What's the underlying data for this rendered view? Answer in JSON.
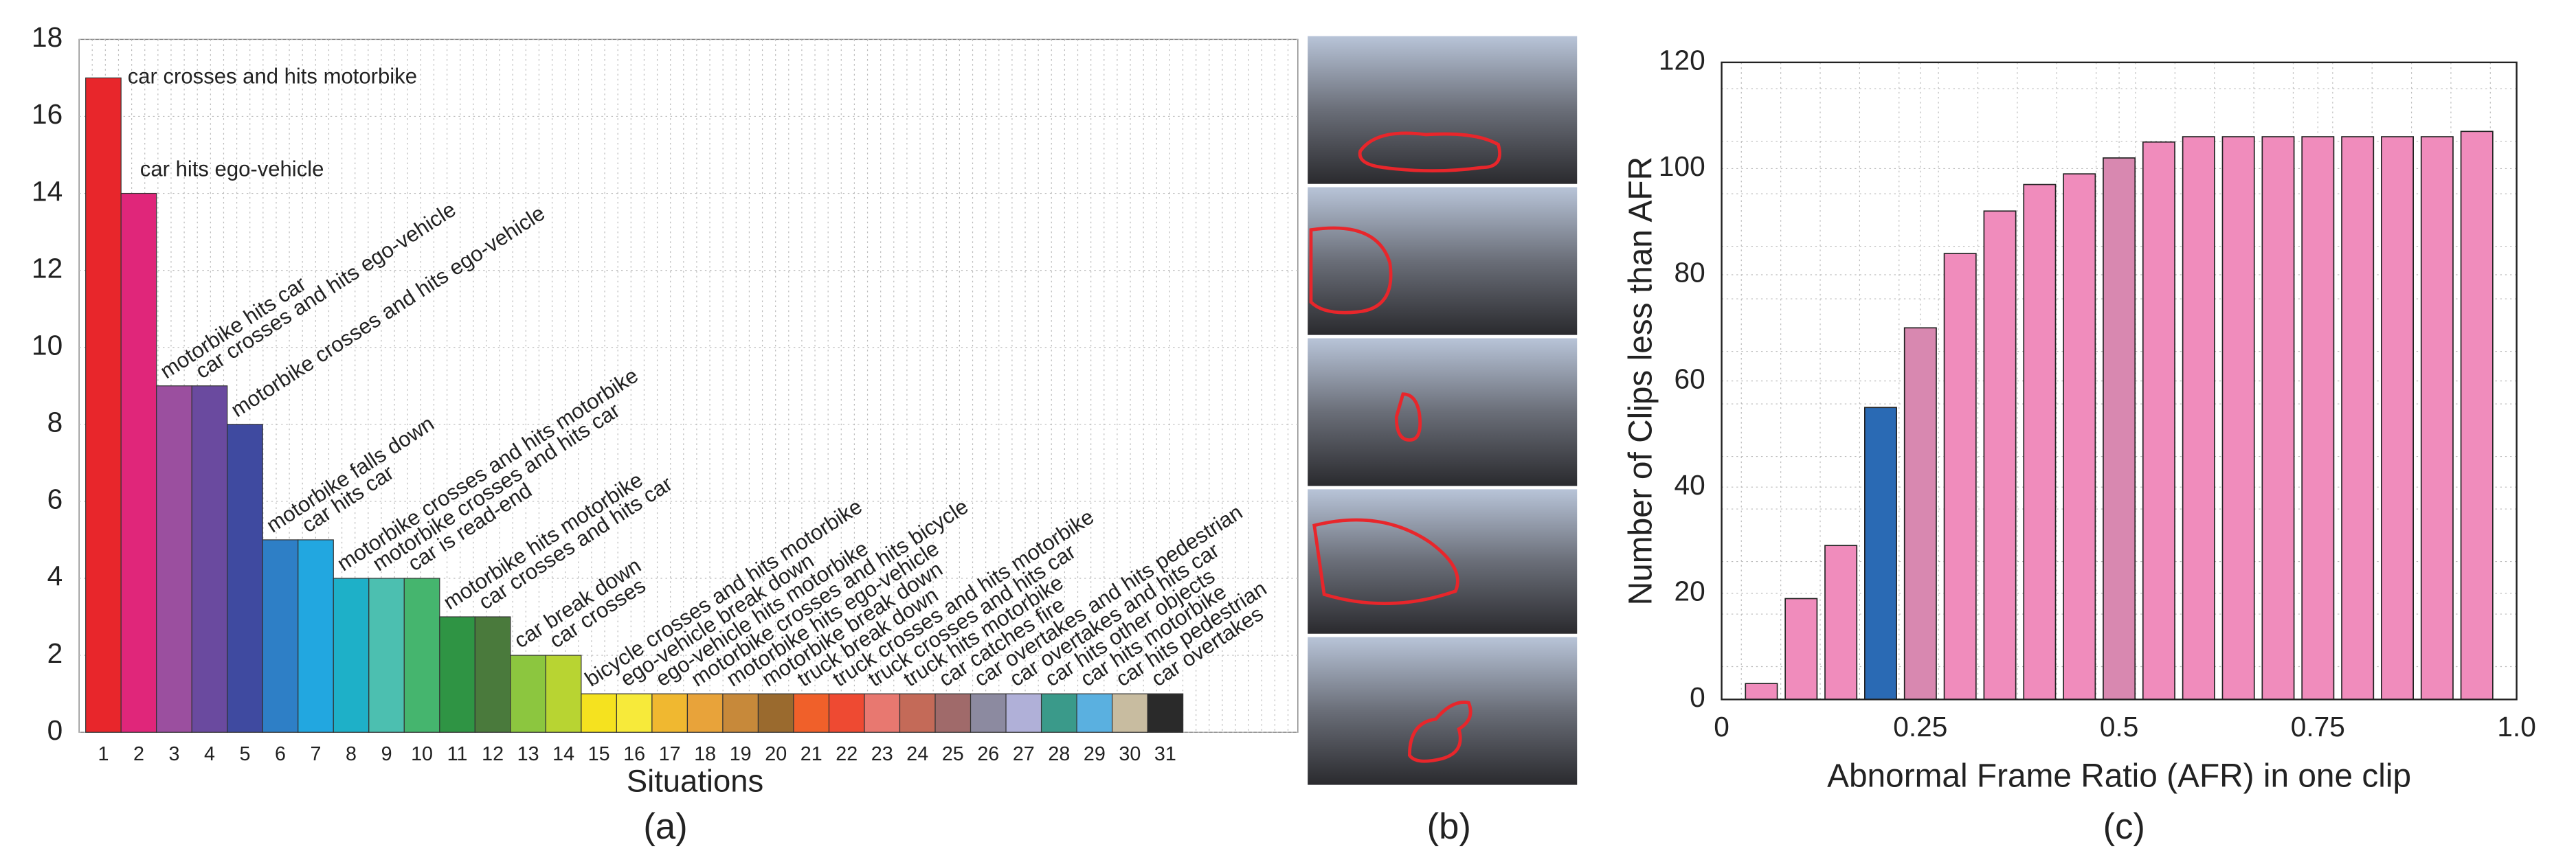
{
  "panels": [
    "(a)",
    "(b)",
    "(c)"
  ],
  "chart_data": [
    {
      "type": "bar",
      "x_label": "Situations",
      "categories": [
        "1",
        "2",
        "3",
        "4",
        "5",
        "6",
        "7",
        "8",
        "9",
        "10",
        "11",
        "12",
        "13",
        "14",
        "15",
        "16",
        "17",
        "18",
        "19",
        "20",
        "21",
        "22",
        "23",
        "24",
        "25",
        "26",
        "27",
        "28",
        "29",
        "30",
        "31"
      ],
      "values": [
        17,
        14,
        9,
        9,
        8,
        5,
        5,
        4,
        4,
        4,
        3,
        3,
        2,
        2,
        1,
        1,
        1,
        1,
        1,
        1,
        1,
        1,
        1,
        1,
        1,
        1,
        1,
        1,
        1,
        1,
        1
      ],
      "value_labels": [
        "car crosses and hits motorbike",
        "car hits ego-vehicle",
        "motorbike hits car",
        "car crosses and hits ego-vehicle",
        "motorbike crosses and hits ego-vehicle",
        "motorbike falls down",
        "car hits car",
        "motorbike crosses and hits motorbike",
        "motorbike crosses and hits car",
        "car is read-end",
        "motorbike hits motorbike",
        "car crosses and hits car",
        "car break down",
        "car crosses",
        "bicycle crosses and hits motorbike",
        "ego-vehicle break down",
        "ego-vehicle hits motorbike",
        "motorbike crosses and hits bicycle",
        "motorbike hits ego-vehicle",
        "motorbike break down",
        "truck break down",
        "truck crosses and hits motorbike",
        "truck crosses and hits car",
        "truck hits motorbike",
        "car catches fire",
        "car overtakes and hits pedestrian",
        "car overtakes and hits car",
        "car hits other objects",
        "car hits motorbike",
        "car hits pedestrian",
        "car overtakes"
      ],
      "colors": [
        "#e8262b",
        "#e0267a",
        "#9b4f9f",
        "#6a4a9f",
        "#3f4aa0",
        "#2e7fc6",
        "#22a7e0",
        "#1eb0c8",
        "#4cbfb0",
        "#45b56e",
        "#2f9444",
        "#4a7a3c",
        "#8cc63f",
        "#b8d432",
        "#f5e21f",
        "#f7ea3a",
        "#f0b830",
        "#e8a33a",
        "#c7893a",
        "#9a6a2e",
        "#f0602a",
        "#ee4a32",
        "#e87870",
        "#c46a58",
        "#a06a6a",
        "#8c8aa0",
        "#b0b0d8",
        "#3a9a8a",
        "#5ab0e0",
        "#c8bca0",
        "#2a2a2a"
      ],
      "ylim": [
        0,
        18
      ],
      "yticks": [
        0,
        2,
        4,
        6,
        8,
        10,
        12,
        14,
        16,
        18
      ],
      "grid": true
    },
    {
      "type": "bar",
      "x_label": "Abnormal Frame Ratio (AFR) in one clip",
      "y_label": "Number of Clips less than AFR",
      "x": [
        0.05,
        0.1,
        0.15,
        0.2,
        0.25,
        0.3,
        0.35,
        0.4,
        0.45,
        0.5,
        0.55,
        0.6,
        0.65,
        0.7,
        0.75,
        0.8,
        0.85,
        0.9,
        0.95
      ],
      "values": [
        3,
        19,
        29,
        55,
        70,
        84,
        92,
        97,
        99,
        102,
        105,
        106,
        106,
        106,
        106,
        106,
        106,
        106,
        107
      ],
      "colors": [
        "#f08cbc",
        "#f08cbc",
        "#f08cbc",
        "#2a6ab4",
        "#d888b0",
        "#f08cbc",
        "#f08cbc",
        "#f08cbc",
        "#f08cbc",
        "#d888b0",
        "#f08cbc",
        "#f08cbc",
        "#f08cbc",
        "#f08cbc",
        "#f08cbc",
        "#f08cbc",
        "#f08cbc",
        "#f08cbc",
        "#f08cbc"
      ],
      "xlim": [
        0,
        1
      ],
      "xticks": [
        0,
        0.25,
        0.5,
        0.75,
        {
          "value": 1,
          "label": "1.0"
        }
      ],
      "ylim": [
        0,
        120
      ],
      "yticks": [
        0,
        20,
        40,
        60,
        80,
        100,
        120
      ],
      "grid": true
    }
  ]
}
